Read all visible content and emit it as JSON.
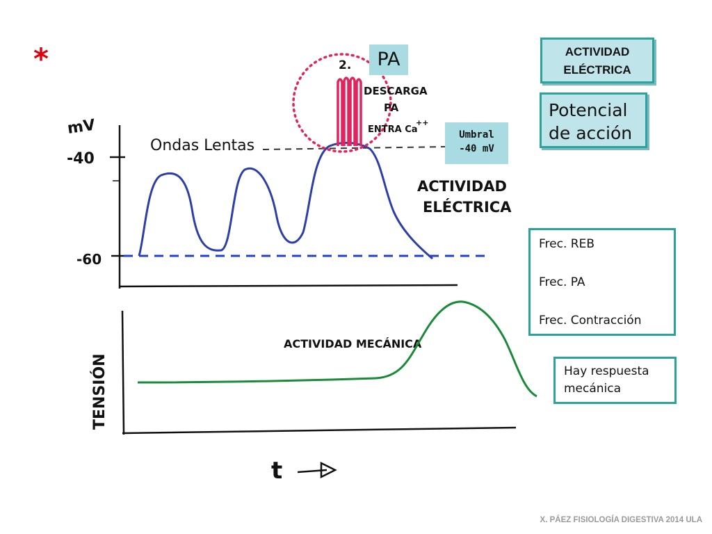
{
  "star_symbol": "*",
  "electrical_panel": {
    "axis_unit_label": "mV",
    "tick_label_upper": "-40",
    "tick_label_lower": "-60",
    "slow_waves_label": "Ondas Lentas",
    "action_potential_badge": "PA",
    "circle_number": "2.",
    "discharge_note_line1": "DESCARGA",
    "discharge_note_line2": "PA",
    "calcium_entry_note": "ENTRA Ca",
    "calcium_superscript": "++",
    "threshold_label": "Umbral\n-40 mV",
    "handwritten_label_line1": "ACTIVIDAD",
    "handwritten_label_line2": "ELÉCTRICA"
  },
  "mechanical_panel": {
    "axis_label": "TENSIÓN",
    "handwritten_label": "ACTIVIDAD MECÁNICA",
    "time_axis_label": "t"
  },
  "info_boxes": {
    "activity_title_line1": "ACTIVIDAD",
    "activity_title_line2": "ELÉCTRICA",
    "action_potential_line1": "Potencial",
    "action_potential_line2": "de acción",
    "freq_reb": "Frec. REB",
    "freq_pa": "Frec. PA",
    "freq_contraction": "Frec. Contracción",
    "mechanical_response_line1": "Hay respuesta",
    "mechanical_response_line2": "mecánica"
  },
  "footer": "X. PÁEZ   FISIOLOGÍA DIGESTIVA 2014   ULA",
  "colors": {
    "electrical_trace": "#2c3ea8",
    "mechanical_trace": "#1a8a3a",
    "spike": "#e0245e",
    "circle": "#e0245e",
    "baseline": "#1f3fd0",
    "arrow": "#c2182b",
    "star": "#e2000f",
    "box_border": "#2aa39a",
    "box_fill": "#bfe4ea"
  }
}
